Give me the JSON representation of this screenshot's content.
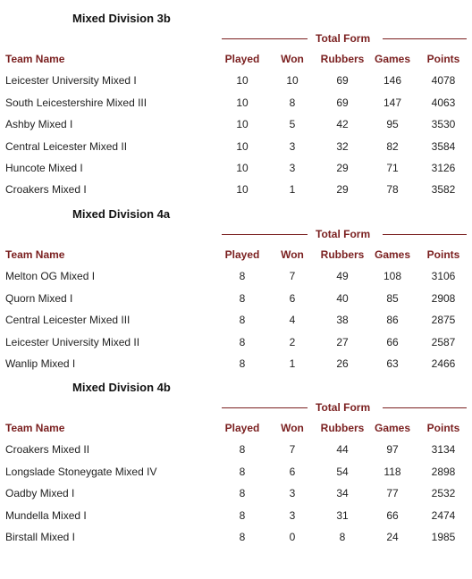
{
  "headers": {
    "team": "Team Name",
    "played": "Played",
    "won": "Won",
    "rubbers": "Rubbers",
    "games": "Games",
    "points": "Points",
    "total_form": "Total Form"
  },
  "divisions": [
    {
      "title": "Mixed Division 3b",
      "rows": [
        {
          "team": "Leicester University Mixed I",
          "played": "10",
          "won": "10",
          "rubbers": "69",
          "games": "146",
          "points": "4078"
        },
        {
          "team": "South Leicestershire Mixed III",
          "played": "10",
          "won": "8",
          "rubbers": "69",
          "games": "147",
          "points": "4063"
        },
        {
          "team": "Ashby Mixed I",
          "played": "10",
          "won": "5",
          "rubbers": "42",
          "games": "95",
          "points": "3530"
        },
        {
          "team": "Central Leicester Mixed II",
          "played": "10",
          "won": "3",
          "rubbers": "32",
          "games": "82",
          "points": "3584"
        },
        {
          "team": "Huncote Mixed I",
          "played": "10",
          "won": "3",
          "rubbers": "29",
          "games": "71",
          "points": "3126"
        },
        {
          "team": "Croakers Mixed I",
          "played": "10",
          "won": "1",
          "rubbers": "29",
          "games": "78",
          "points": "3582"
        }
      ]
    },
    {
      "title": "Mixed Division 4a",
      "rows": [
        {
          "team": "Melton OG Mixed I",
          "played": "8",
          "won": "7",
          "rubbers": "49",
          "games": "108",
          "points": "3106"
        },
        {
          "team": "Quorn Mixed I",
          "played": "8",
          "won": "6",
          "rubbers": "40",
          "games": "85",
          "points": "2908"
        },
        {
          "team": "Central Leicester Mixed III",
          "played": "8",
          "won": "4",
          "rubbers": "38",
          "games": "86",
          "points": "2875"
        },
        {
          "team": "Leicester University Mixed II",
          "played": "8",
          "won": "2",
          "rubbers": "27",
          "games": "66",
          "points": "2587"
        },
        {
          "team": "Wanlip Mixed I",
          "played": "8",
          "won": "1",
          "rubbers": "26",
          "games": "63",
          "points": "2466"
        }
      ]
    },
    {
      "title": "Mixed Division 4b",
      "rows": [
        {
          "team": "Croakers Mixed II",
          "played": "8",
          "won": "7",
          "rubbers": "44",
          "games": "97",
          "points": "3134"
        },
        {
          "team": "Longslade Stoneygate Mixed IV",
          "played": "8",
          "won": "6",
          "rubbers": "54",
          "games": "118",
          "points": "2898"
        },
        {
          "team": "Oadby Mixed I",
          "played": "8",
          "won": "3",
          "rubbers": "34",
          "games": "77",
          "points": "2532"
        },
        {
          "team": "Mundella Mixed I",
          "played": "8",
          "won": "3",
          "rubbers": "31",
          "games": "66",
          "points": "2474"
        },
        {
          "team": "Birstall Mixed I",
          "played": "8",
          "won": "0",
          "rubbers": "8",
          "games": "24",
          "points": "1985"
        }
      ]
    }
  ]
}
